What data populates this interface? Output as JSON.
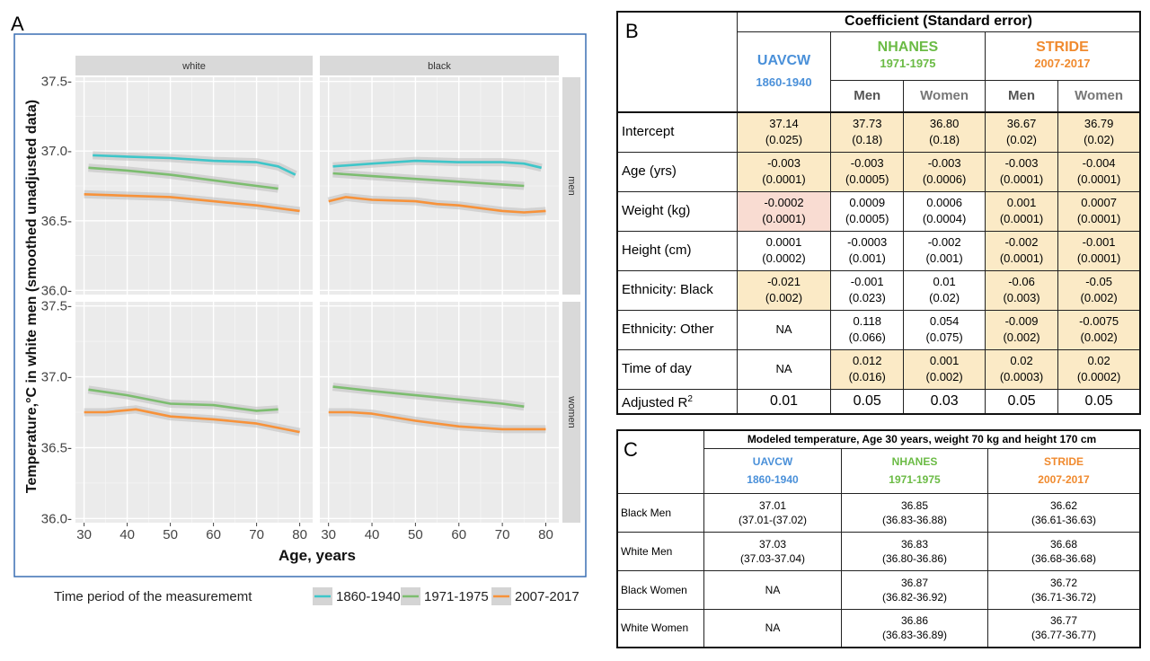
{
  "panels": {
    "a": "A",
    "b": "B",
    "c": "C"
  },
  "colors": {
    "p1860": "#3ec6c9",
    "p1971": "#7cbd6f",
    "p2007": "#f7923a",
    "strip": "#d9d9d9",
    "plotbg": "#ebebeb"
  },
  "chart_data": {
    "type": "line",
    "ylabel": "Temperature,°C in white men (smoothed unadjusted data)",
    "xlabel": "Age, years",
    "xlim": [
      28,
      83
    ],
    "ylim": [
      35.97,
      37.53
    ],
    "x_ticks": [
      "30",
      "40",
      "50",
      "60",
      "70",
      "80"
    ],
    "y_ticks": [
      "36.0-",
      "36.5-",
      "37.0-",
      "37.5-"
    ],
    "column_strips": [
      "white",
      "black"
    ],
    "row_strips": [
      "men",
      "women"
    ],
    "legend_title": "Time period of the measurememt",
    "legend": [
      "1860-1940",
      "1971-1975",
      "2007-2017"
    ],
    "facets": [
      {
        "col": 0,
        "row": 0,
        "series": [
          {
            "name": "1860-1940",
            "x": [
              32,
              40,
              50,
              60,
              70,
              75,
              79
            ],
            "y": [
              36.97,
              36.96,
              36.95,
              36.93,
              36.92,
              36.89,
              36.83
            ]
          },
          {
            "name": "1971-1975",
            "x": [
              31,
              40,
              50,
              60,
              70,
              75
            ],
            "y": [
              36.88,
              36.86,
              36.83,
              36.79,
              36.75,
              36.73
            ]
          },
          {
            "name": "2007-2017",
            "x": [
              30,
              40,
              50,
              60,
              70,
              80
            ],
            "y": [
              36.69,
              36.68,
              36.67,
              36.64,
              36.61,
              36.57
            ]
          }
        ]
      },
      {
        "col": 1,
        "row": 0,
        "series": [
          {
            "name": "1860-1940",
            "x": [
              31,
              40,
              50,
              60,
              70,
              75,
              79
            ],
            "y": [
              36.89,
              36.91,
              36.93,
              36.92,
              36.92,
              36.91,
              36.88
            ]
          },
          {
            "name": "1971-1975",
            "x": [
              31,
              40,
              50,
              60,
              70,
              75
            ],
            "y": [
              36.84,
              36.82,
              36.8,
              36.78,
              36.76,
              36.75
            ]
          },
          {
            "name": "2007-2017",
            "x": [
              30,
              34,
              40,
              50,
              55,
              60,
              65,
              70,
              75,
              80
            ],
            "y": [
              36.64,
              36.67,
              36.65,
              36.64,
              36.62,
              36.61,
              36.59,
              36.57,
              36.56,
              36.57
            ]
          }
        ]
      },
      {
        "col": 0,
        "row": 1,
        "series": [
          {
            "name": "1971-1975",
            "x": [
              31,
              40,
              50,
              60,
              70,
              75
            ],
            "y": [
              36.91,
              36.87,
              36.81,
              36.8,
              36.76,
              36.77
            ]
          },
          {
            "name": "2007-2017",
            "x": [
              30,
              35,
              42,
              50,
              60,
              70,
              80
            ],
            "y": [
              36.75,
              36.75,
              36.77,
              36.72,
              36.7,
              36.67,
              36.61
            ]
          }
        ]
      },
      {
        "col": 1,
        "row": 1,
        "series": [
          {
            "name": "1971-1975",
            "x": [
              31,
              40,
              50,
              60,
              70,
              75
            ],
            "y": [
              36.93,
              36.9,
              36.87,
              36.84,
              36.81,
              36.79
            ]
          },
          {
            "name": "2007-2017",
            "x": [
              30,
              35,
              40,
              50,
              60,
              70,
              80
            ],
            "y": [
              36.75,
              36.75,
              36.74,
              36.69,
              36.65,
              36.63,
              36.63
            ]
          }
        ]
      }
    ]
  },
  "table_b": {
    "title": "Coefficient (Standard error)",
    "uavcw": "UAVCW",
    "uavcw_years": "1860-1940",
    "nhanes": "NHANES",
    "nhanes_years": "1971-1975",
    "stride": "STRIDE",
    "stride_years": "2007-2017",
    "men": "Men",
    "women": "Women",
    "rows": [
      {
        "label": "Intercept",
        "cells": [
          [
            "37.14",
            "(0.025)"
          ],
          [
            "37.73",
            "(0.18)"
          ],
          [
            "36.80",
            "(0.18)"
          ],
          [
            "36.67",
            "(0.02)"
          ],
          [
            "36.79",
            "(0.02)"
          ]
        ]
      },
      {
        "label": "Age (yrs)",
        "cells": [
          [
            "-0.003",
            "(0.0001)"
          ],
          [
            "-0.003",
            "(0.0005)"
          ],
          [
            "-0.003",
            "(0.0006)"
          ],
          [
            "-0.003",
            "(0.0001)"
          ],
          [
            "-0.004",
            "(0.0001)"
          ]
        ]
      },
      {
        "label": "Weight (kg)",
        "cells": [
          [
            "-0.0002",
            "(0.0001)"
          ],
          [
            "0.0009",
            "(0.0005)"
          ],
          [
            "0.0006",
            "(0.0004)"
          ],
          [
            "0.001",
            "(0.0001)"
          ],
          [
            "0.0007",
            "(0.0001)"
          ]
        ]
      },
      {
        "label": "Height (cm)",
        "cells": [
          [
            "0.0001",
            "(0.0002)"
          ],
          [
            "-0.0003",
            "(0.001)"
          ],
          [
            "-0.002",
            "(0.001)"
          ],
          [
            "-0.002",
            "(0.0001)"
          ],
          [
            "-0.001",
            "(0.0001)"
          ]
        ]
      },
      {
        "label": "Ethnicity: Black",
        "cells": [
          [
            "-0.021",
            "(0.002)"
          ],
          [
            "-0.001",
            "(0.023)"
          ],
          [
            "0.01",
            "(0.02)"
          ],
          [
            "-0.06",
            "(0.003)"
          ],
          [
            "-0.05",
            "(0.002)"
          ]
        ]
      },
      {
        "label": "Ethnicity: Other",
        "cells": [
          [
            "NA",
            ""
          ],
          [
            "0.118",
            "(0.066)"
          ],
          [
            "0.054",
            "(0.075)"
          ],
          [
            "-0.009",
            "(0.002)"
          ],
          [
            "-0.0075",
            "(0.002)"
          ]
        ]
      },
      {
        "label": "Time of day",
        "cells": [
          [
            "NA",
            ""
          ],
          [
            "0.012",
            "(0.016)"
          ],
          [
            "0.001",
            "(0.002)"
          ],
          [
            "0.02",
            "(0.0003)"
          ],
          [
            "0.02",
            "(0.0002)"
          ]
        ]
      }
    ],
    "adj_label": "Adjusted R",
    "adj_sup": "2",
    "adj_values": [
      "0.01",
      "0.05",
      "0.03",
      "0.05",
      "0.05"
    ]
  },
  "table_c": {
    "title": "Modeled temperature, Age 30 years, weight 70 kg and height 170 cm",
    "uavcw": "UAVCW",
    "uavcw_years": "1860-1940",
    "nhanes": "NHANES",
    "nhanes_years": "1971-1975",
    "stride": "STRIDE",
    "stride_years": "2007-2017",
    "rows": [
      {
        "label": "Black Men",
        "cells": [
          [
            "37.01",
            "(37.01-(37.02)"
          ],
          [
            "36.85",
            "(36.83-36.88)"
          ],
          [
            "36.62",
            "(36.61-36.63)"
          ]
        ]
      },
      {
        "label": "White Men",
        "cells": [
          [
            "37.03",
            "(37.03-37.04)"
          ],
          [
            "36.83",
            "(36.80-36.86)"
          ],
          [
            "36.68",
            "(36.68-36.68)"
          ]
        ]
      },
      {
        "label": "Black Women",
        "cells": [
          [
            "NA",
            ""
          ],
          [
            "36.87",
            "(36.82-36.92)"
          ],
          [
            "36.72",
            "(36.71-36.72)"
          ]
        ]
      },
      {
        "label": "White Women",
        "cells": [
          [
            "NA",
            ""
          ],
          [
            "36.86",
            "(36.83-36.89)"
          ],
          [
            "36.77",
            "(36.77-36.77)"
          ]
        ]
      }
    ]
  }
}
